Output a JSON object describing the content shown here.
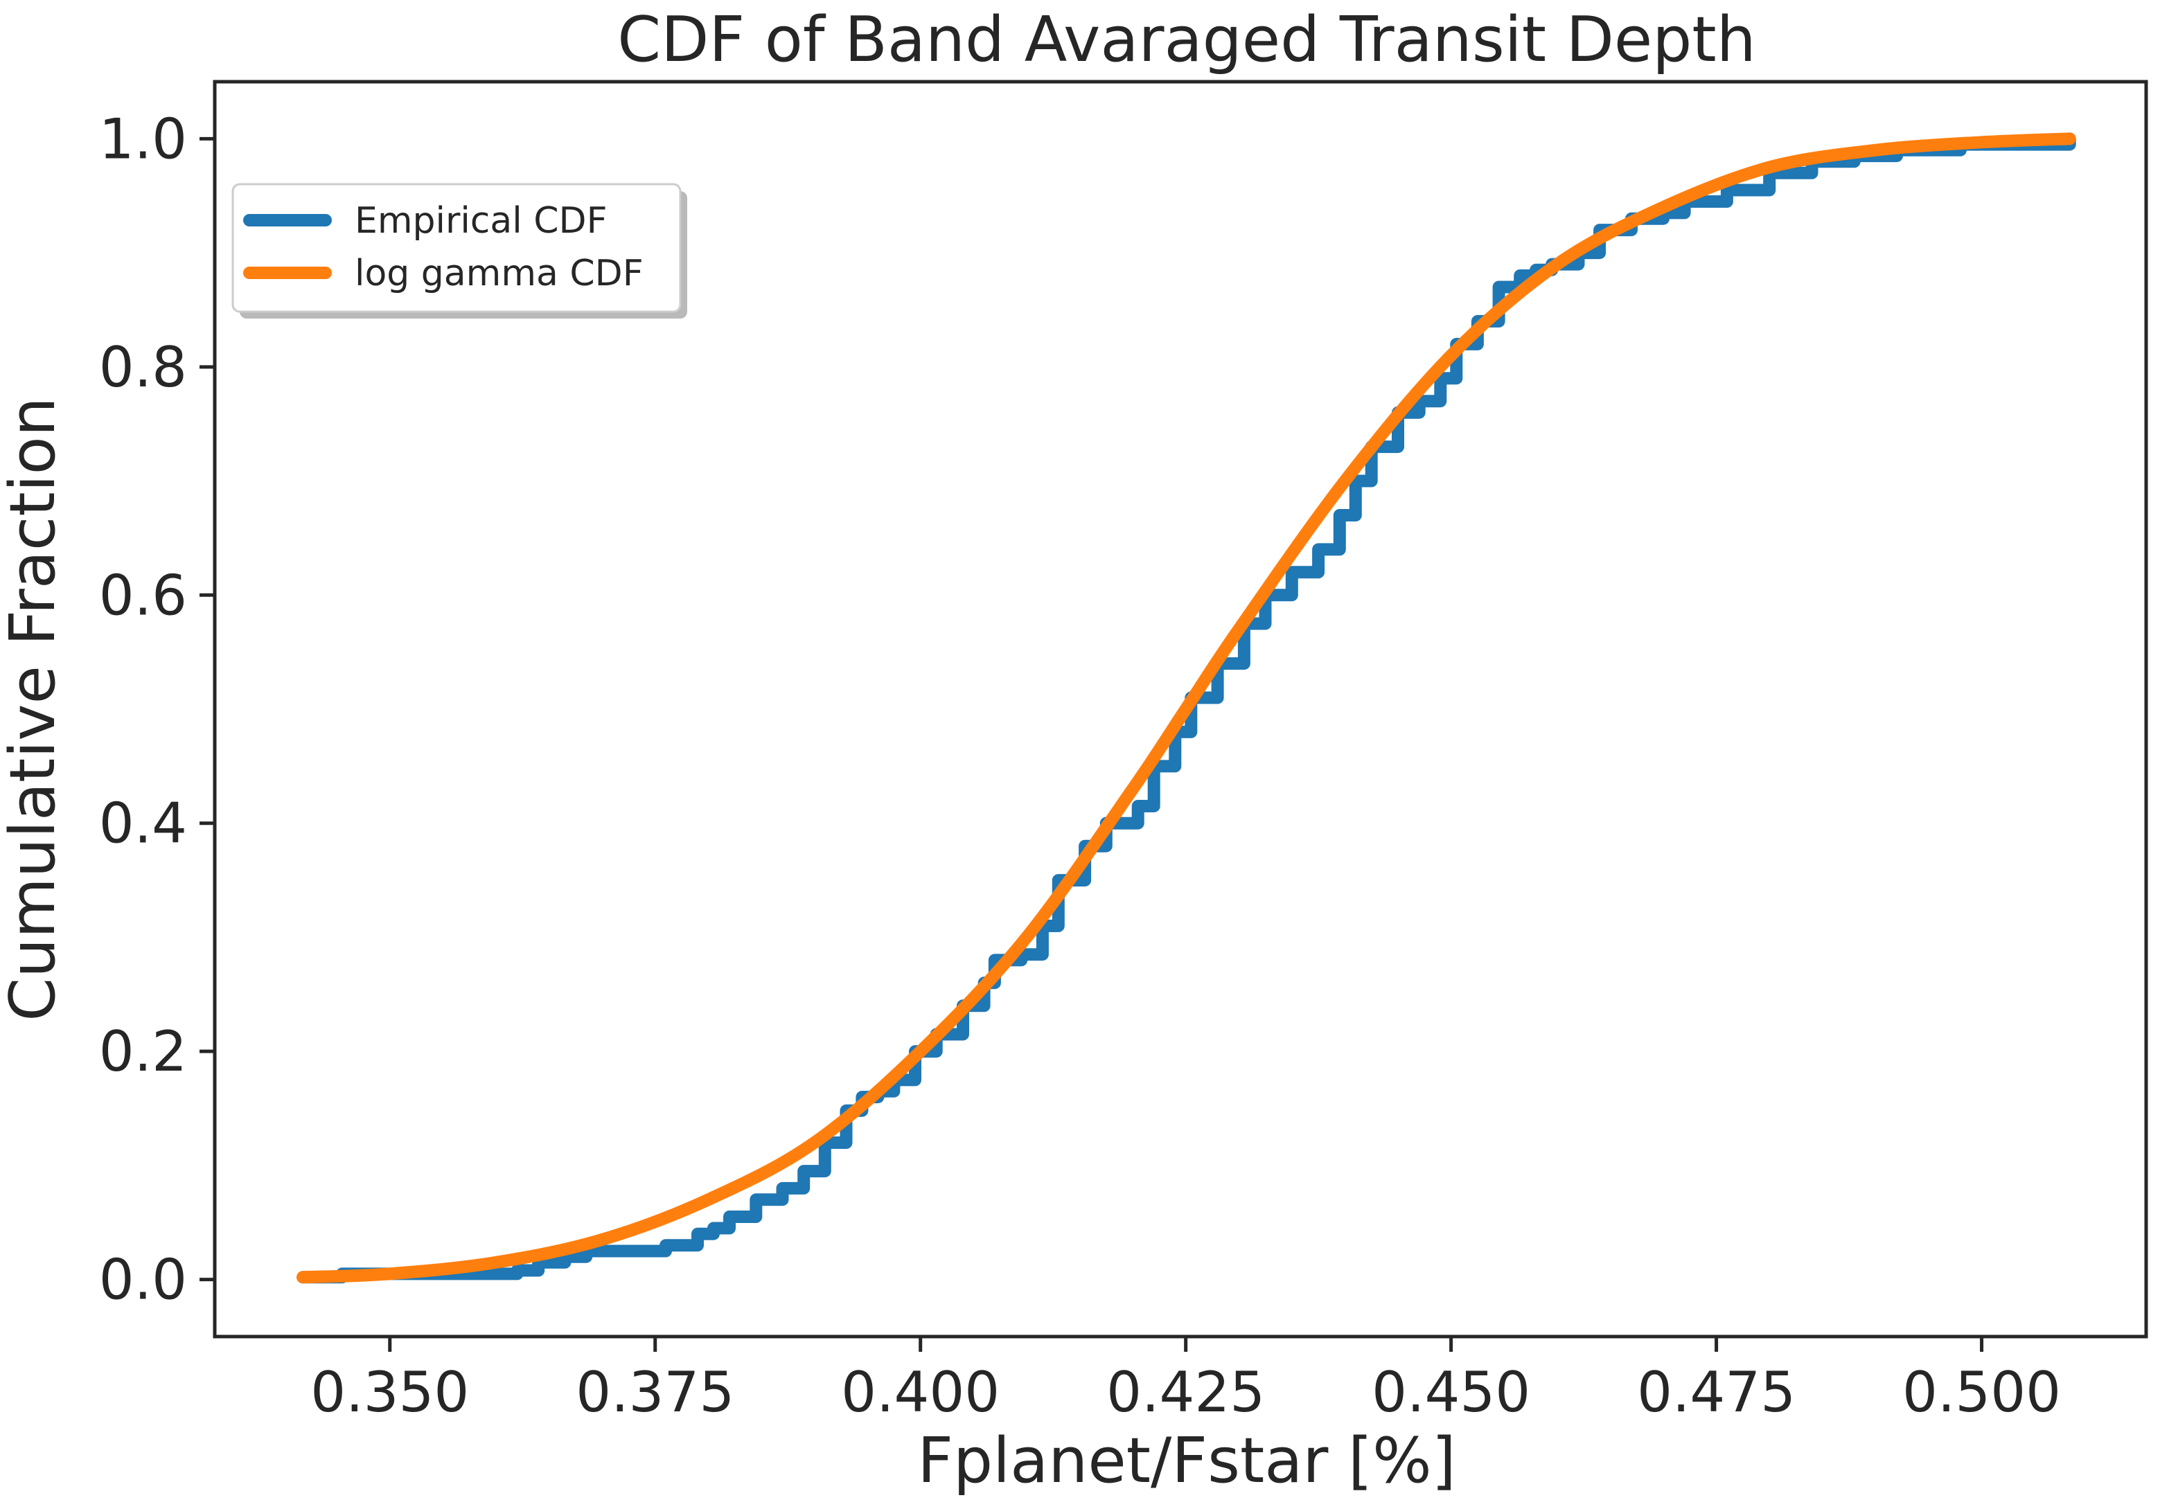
{
  "chart_data": {
    "type": "line",
    "title": "CDF of Band Avaraged Transit Depth",
    "xlabel": "Fplanet/Fstar [%]",
    "ylabel": "Cumulative Fraction",
    "xlim": [
      0.3335,
      0.5155
    ],
    "ylim": [
      -0.05,
      1.05
    ],
    "x_ticks": [
      0.35,
      0.375,
      0.4,
      0.425,
      0.45,
      0.475,
      0.5
    ],
    "x_tick_labels": [
      "0.350",
      "0.375",
      "0.400",
      "0.425",
      "0.450",
      "0.475",
      "0.500"
    ],
    "y_ticks": [
      0.0,
      0.2,
      0.4,
      0.6,
      0.8,
      1.0
    ],
    "y_tick_labels": [
      "0.0",
      "0.2",
      "0.4",
      "0.6",
      "0.8",
      "1.0"
    ],
    "grid": false,
    "legend_position": "upper-left",
    "series": [
      {
        "name": "Empirical CDF",
        "color": "#1f77b4",
        "style": "step",
        "points": [
          [
            0.3418,
            0.002
          ],
          [
            0.3455,
            0.005
          ],
          [
            0.362,
            0.008
          ],
          [
            0.364,
            0.015
          ],
          [
            0.3665,
            0.02
          ],
          [
            0.3685,
            0.025
          ],
          [
            0.374,
            0.025
          ],
          [
            0.376,
            0.03
          ],
          [
            0.379,
            0.04
          ],
          [
            0.3805,
            0.045
          ],
          [
            0.382,
            0.055
          ],
          [
            0.384,
            0.055
          ],
          [
            0.3845,
            0.07
          ],
          [
            0.387,
            0.08
          ],
          [
            0.389,
            0.095
          ],
          [
            0.391,
            0.12
          ],
          [
            0.393,
            0.148
          ],
          [
            0.3945,
            0.16
          ],
          [
            0.396,
            0.165
          ],
          [
            0.3975,
            0.175
          ],
          [
            0.3995,
            0.2
          ],
          [
            0.4015,
            0.215
          ],
          [
            0.404,
            0.24
          ],
          [
            0.406,
            0.26
          ],
          [
            0.407,
            0.28
          ],
          [
            0.4095,
            0.285
          ],
          [
            0.4115,
            0.31
          ],
          [
            0.413,
            0.35
          ],
          [
            0.4155,
            0.38
          ],
          [
            0.4175,
            0.4
          ],
          [
            0.4205,
            0.415
          ],
          [
            0.422,
            0.45
          ],
          [
            0.424,
            0.48
          ],
          [
            0.4255,
            0.51
          ],
          [
            0.428,
            0.54
          ],
          [
            0.4305,
            0.575
          ],
          [
            0.4325,
            0.6
          ],
          [
            0.435,
            0.62
          ],
          [
            0.4375,
            0.64
          ],
          [
            0.4395,
            0.67
          ],
          [
            0.441,
            0.7
          ],
          [
            0.4425,
            0.73
          ],
          [
            0.445,
            0.76
          ],
          [
            0.447,
            0.77
          ],
          [
            0.449,
            0.79
          ],
          [
            0.4505,
            0.82
          ],
          [
            0.4525,
            0.84
          ],
          [
            0.4545,
            0.87
          ],
          [
            0.4565,
            0.88
          ],
          [
            0.458,
            0.885
          ],
          [
            0.4595,
            0.89
          ],
          [
            0.462,
            0.9
          ],
          [
            0.464,
            0.92
          ],
          [
            0.467,
            0.93
          ],
          [
            0.47,
            0.935
          ],
          [
            0.472,
            0.945
          ],
          [
            0.476,
            0.955
          ],
          [
            0.48,
            0.97
          ],
          [
            0.484,
            0.98
          ],
          [
            0.488,
            0.985
          ],
          [
            0.492,
            0.99
          ],
          [
            0.498,
            0.995
          ],
          [
            0.5083,
            1.0
          ]
        ]
      },
      {
        "name": "log gamma CDF",
        "color": "#ff7f0e",
        "style": "smooth",
        "points": [
          [
            0.3418,
            0.002
          ],
          [
            0.35,
            0.005
          ],
          [
            0.36,
            0.015
          ],
          [
            0.37,
            0.035
          ],
          [
            0.38,
            0.07
          ],
          [
            0.39,
            0.12
          ],
          [
            0.4,
            0.2
          ],
          [
            0.41,
            0.3
          ],
          [
            0.42,
            0.43
          ],
          [
            0.425,
            0.5
          ],
          [
            0.43,
            0.57
          ],
          [
            0.44,
            0.7
          ],
          [
            0.45,
            0.81
          ],
          [
            0.46,
            0.89
          ],
          [
            0.47,
            0.94
          ],
          [
            0.48,
            0.975
          ],
          [
            0.49,
            0.99
          ],
          [
            0.5,
            0.997
          ],
          [
            0.5083,
            1.0
          ]
        ]
      }
    ]
  }
}
